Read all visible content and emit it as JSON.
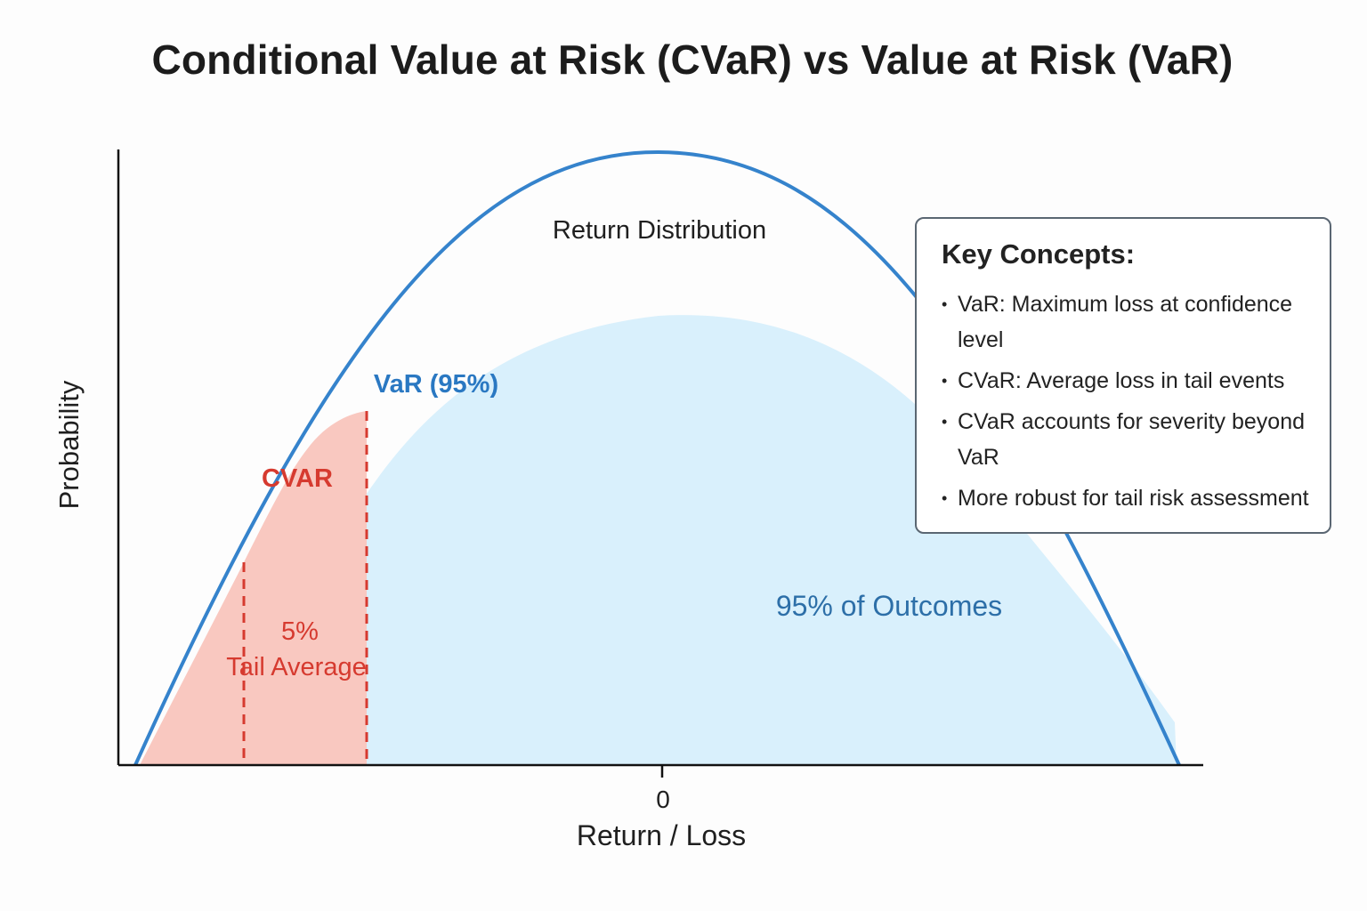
{
  "title": "Conditional Value at Risk (CVaR) vs Value at Risk (VaR)",
  "axes": {
    "y_label": "Probability",
    "x_label": "Return / Loss",
    "x_tick": "0"
  },
  "annotations": {
    "distribution": "Return Distribution",
    "var_label": "VaR (95%)",
    "cvar_label": "CVAR",
    "tail_pct": "5%",
    "tail_avg": "Tail Average",
    "outcomes": "95% of Outcomes"
  },
  "legend": {
    "heading": "Key Concepts:",
    "items": [
      "VaR: Maximum loss at confidence level",
      "CVaR: Average loss in tail events",
      "CVaR accounts for severity beyond VaR",
      "More robust for tail risk assessment"
    ]
  },
  "colors": {
    "curve": "#3583cc",
    "tail_fill": "#f9c8c0",
    "body_fill": "#d9f0fc",
    "cvar_red": "#d63a2f",
    "var_blue": "#2a78c2",
    "outcomes_blue": "#2d6fa8"
  }
}
